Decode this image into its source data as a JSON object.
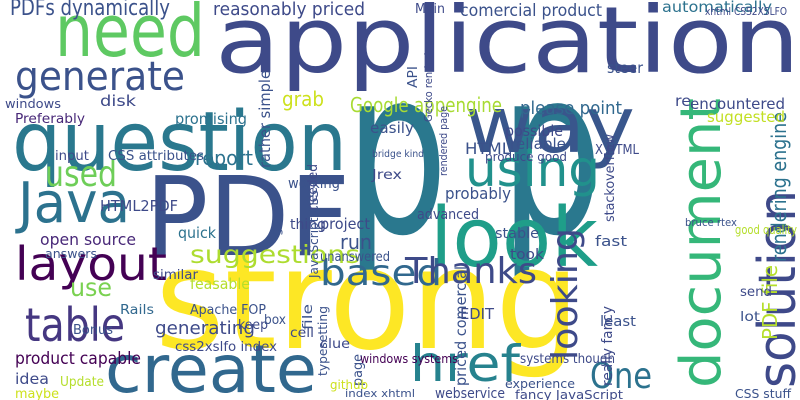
{
  "words": [
    "application",
    "strong",
    "PDF",
    "question",
    "look",
    "way",
    "need",
    "create",
    "Java",
    "using",
    "document",
    "solution",
    "layout",
    "based",
    "Thanks",
    "table",
    "href",
    "One",
    "generate",
    "looking",
    "suggestions",
    "used",
    "use",
    "PDFs dynamically",
    "reasonably priced",
    "comercial product",
    "automatically",
    "Google appengine",
    "please point",
    "encountered",
    "rendering engine",
    "suggested",
    "PDF file",
    "grab",
    "report",
    "disk",
    "windows",
    "Preferably",
    "promising",
    "rather simple",
    "input",
    "CSS attributes",
    "HTML2PDF",
    "open source",
    "answers",
    "quick",
    "feasable",
    "similar",
    "product capable",
    "generating",
    "Rails",
    "Apache FOP",
    "idea",
    "Bonus",
    "maybe",
    "Update",
    "keep",
    "box",
    "cell",
    "file",
    "css2xslfo index",
    "typesetting",
    "clue",
    "page",
    "windows systems",
    "github",
    "index xhtml",
    "webservice",
    "experience",
    "fancy JavaScript",
    "CSS stuff",
    "EDIT",
    "least",
    "systems though",
    "priced comercial",
    "really fancy",
    "lot",
    "send",
    "fast",
    "took",
    "stable",
    "advanced",
    "probably",
    "produce good",
    "reliable",
    "possible",
    "HTML",
    "X HTML",
    "easily",
    "stackoverflow",
    "good quality",
    "bruce rtex",
    "Jrex",
    "bridge kind",
    "rendered page",
    "run",
    "project",
    "unanswered",
    "thing",
    "working",
    "needed",
    "go",
    "Main",
    "steer",
    "re",
    "API",
    "Gecko rendering",
    "JavaScript CSS",
    "xhtml CSS2XSLFO",
    "p p"
  ]
}
